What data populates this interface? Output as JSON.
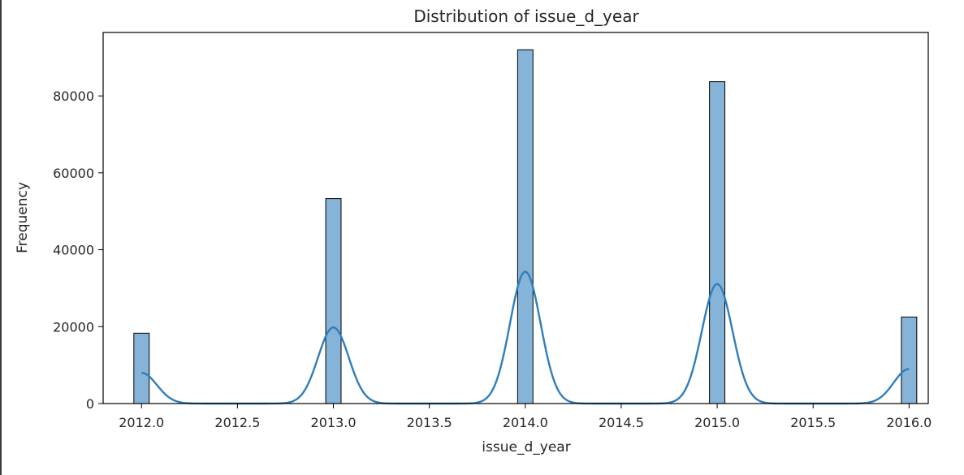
{
  "chart_data": {
    "type": "histogram",
    "title": "Distribution of issue_d_year",
    "xlabel": "issue_d_year",
    "ylabel": "Frequency",
    "xlim": [
      2011.8,
      2016.1
    ],
    "ylim": [
      0,
      96500
    ],
    "xticks": [
      2012.0,
      2012.5,
      2013.0,
      2013.5,
      2014.0,
      2014.5,
      2015.0,
      2015.5,
      2016.0
    ],
    "xtick_labels": [
      "2012.0",
      "2012.5",
      "2013.0",
      "2013.5",
      "2014.0",
      "2014.5",
      "2015.0",
      "2015.5",
      "2016.0"
    ],
    "yticks": [
      0,
      20000,
      40000,
      60000,
      80000
    ],
    "ytick_labels": [
      "0",
      "20000",
      "40000",
      "60000",
      "80000"
    ],
    "bar_width": 0.08,
    "bars": [
      {
        "x": 2012.0,
        "value": 18300
      },
      {
        "x": 2013.0,
        "value": 53300
      },
      {
        "x": 2014.0,
        "value": 92000
      },
      {
        "x": 2015.0,
        "value": 83700
      },
      {
        "x": 2016.0,
        "value": 22500
      }
    ],
    "kde": {
      "peaks": [
        {
          "x": 2012.0,
          "height": 8000
        },
        {
          "x": 2013.0,
          "height": 19800
        },
        {
          "x": 2014.0,
          "height": 34300
        },
        {
          "x": 2015.0,
          "height": 31100
        },
        {
          "x": 2016.0,
          "height": 9000
        }
      ],
      "bandwidth": 0.08
    },
    "bar_color": "#86b4d9",
    "bar_edge_color": "#000000",
    "line_color": "#2f7ebc",
    "grid": false,
    "legend": false
  }
}
